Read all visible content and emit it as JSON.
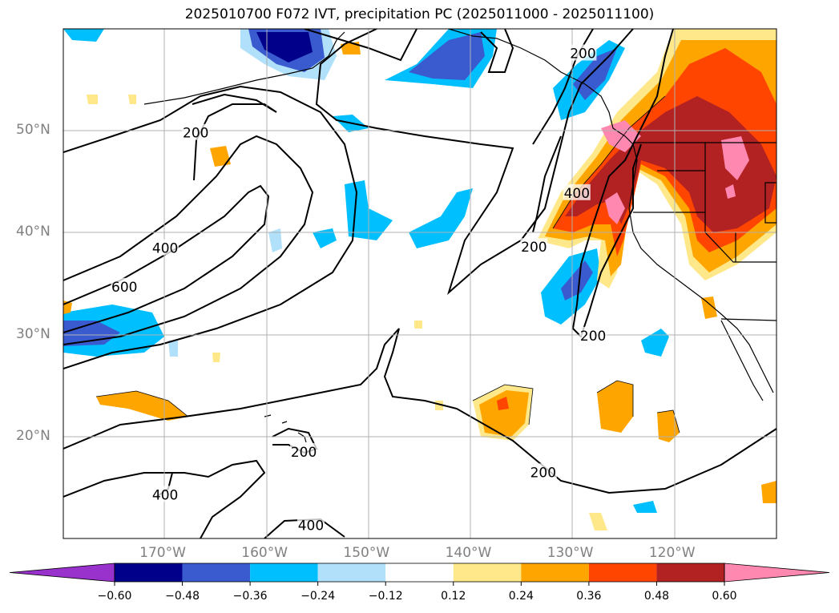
{
  "title": "2025010700 F072 IVT, precipitation PC (2025011000 - 2025011100)",
  "map": {
    "projection": "equirectangular",
    "lon_range": [
      -180,
      -110
    ],
    "lat_range": [
      10,
      60
    ],
    "lat_ticks": [
      {
        "value": 50,
        "label": "50°N"
      },
      {
        "value": 40,
        "label": "40°N"
      },
      {
        "value": 30,
        "label": "30°N"
      },
      {
        "value": 20,
        "label": "20°N"
      }
    ],
    "lon_ticks": [
      {
        "value": -170,
        "label": "170°W"
      },
      {
        "value": -160,
        "label": "160°W"
      },
      {
        "value": -150,
        "label": "150°W"
      },
      {
        "value": -140,
        "label": "140°W"
      },
      {
        "value": -130,
        "label": "130°W"
      },
      {
        "value": -120,
        "label": "120°W"
      }
    ],
    "grid": true,
    "contour_labels": [
      {
        "text": "200",
        "lon": -167,
        "lat": 49.8
      },
      {
        "text": "400",
        "lon": -170,
        "lat": 38.5
      },
      {
        "text": "600",
        "lon": -174,
        "lat": 34.7
      },
      {
        "text": "200",
        "lon": -129,
        "lat": 57.6
      },
      {
        "text": "400",
        "lon": -129.6,
        "lat": 43.9
      },
      {
        "text": "200",
        "lon": -133.8,
        "lat": 38.6
      },
      {
        "text": "200",
        "lon": -128,
        "lat": 29.9
      },
      {
        "text": "200",
        "lon": -156.4,
        "lat": 18.5
      },
      {
        "text": "400",
        "lon": -170,
        "lat": 14.3
      },
      {
        "text": "400",
        "lon": -155.7,
        "lat": 11.3
      },
      {
        "text": "200",
        "lon": -132.9,
        "lat": 16.5
      }
    ]
  },
  "colorbar": {
    "levels": [
      -0.6,
      -0.48,
      -0.36,
      -0.24,
      -0.12,
      0.12,
      0.24,
      0.36,
      0.48,
      0.6
    ],
    "labels": [
      "−0.60",
      "−0.48",
      "−0.36",
      "−0.24",
      "−0.12",
      "0.12",
      "0.24",
      "0.36",
      "0.48",
      "0.60"
    ],
    "colors": [
      "#9932cc",
      "#00008b",
      "#3a5bcf",
      "#00bfff",
      "#b0e0fa",
      "#ffffff",
      "#ffe88a",
      "#ffa500",
      "#ff4500",
      "#b22222",
      "#ff88b0"
    ]
  }
}
